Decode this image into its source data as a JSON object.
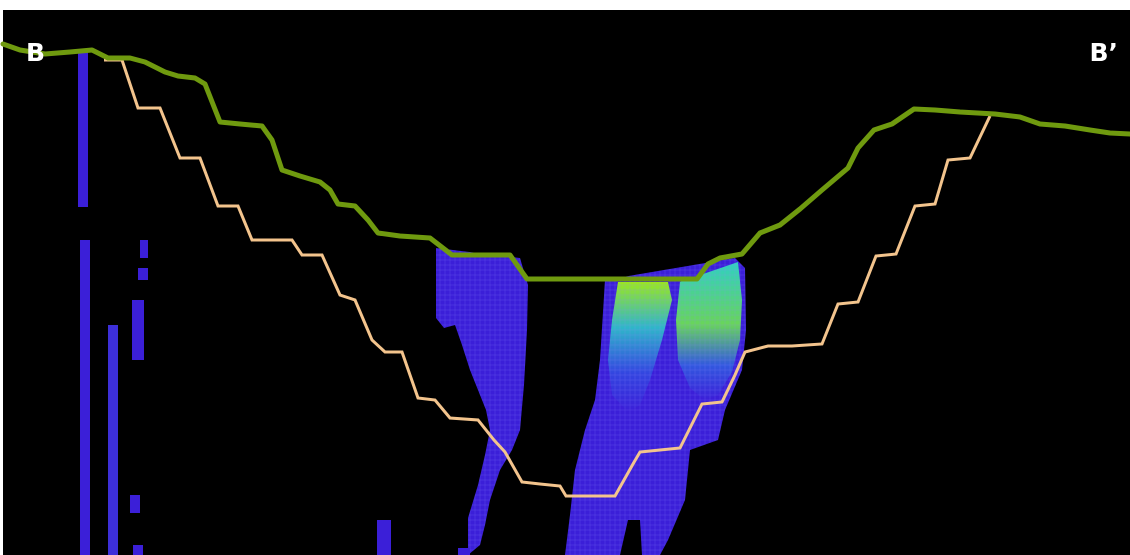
{
  "section": {
    "left_label": "B",
    "right_label": "B’"
  },
  "colors": {
    "background": "#000000",
    "frame": "#ffffff",
    "ground_surface": "#6f9a0f",
    "excavation_outline": "#f3c48d",
    "plume_low": "#3b1fd8",
    "plume_mid": "#2aa9c8",
    "plume_high": "#7fd619"
  }
}
